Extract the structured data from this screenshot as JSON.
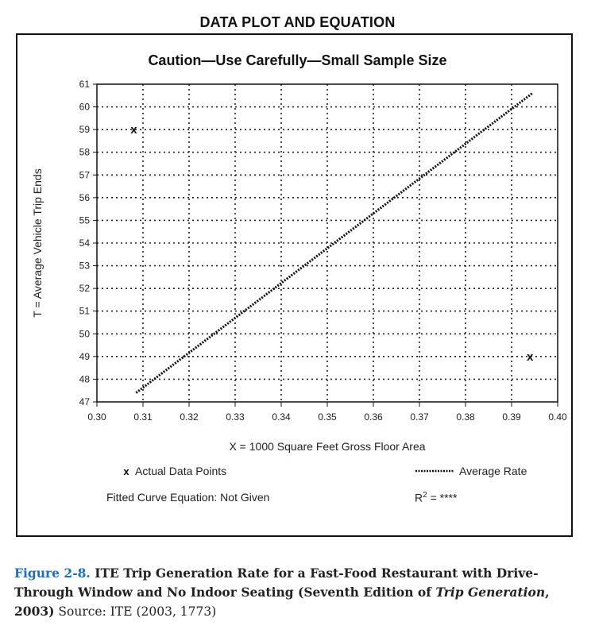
{
  "figure": {
    "heading": "DATA PLOT AND EQUATION",
    "caution": "Caution—Use Carefully—Small Sample Size"
  },
  "chart_data": {
    "type": "scatter",
    "xlabel": "X = 1000 Square Feet Gross Floor Area",
    "ylabel": "T = Average Vehicle Trip Ends",
    "xlim": [
      0.3,
      0.4
    ],
    "ylim": [
      47,
      61
    ],
    "x_ticks": [
      "0.30",
      "0.31",
      "0.32",
      "0.33",
      "0.34",
      "0.35",
      "0.36",
      "0.37",
      "0.38",
      "0.39",
      "0.40"
    ],
    "y_ticks": [
      "47",
      "48",
      "49",
      "50",
      "51",
      "52",
      "53",
      "54",
      "55",
      "56",
      "57",
      "58",
      "59",
      "60",
      "61"
    ],
    "grid": true,
    "points": [
      {
        "x": 0.308,
        "y": 59.0
      },
      {
        "x": 0.394,
        "y": 49.0
      }
    ],
    "average_rate_line": {
      "x": [
        0.3085,
        0.3945
      ],
      "y": [
        47.4,
        60.6
      ]
    },
    "legend": {
      "points_label": "Actual Data Points",
      "line_label": "Average Rate"
    },
    "equation_label": "Fitted Curve Equation: Not Given",
    "r2_label": "R",
    "r2_sup": "2",
    "r2_value": "= ****"
  },
  "caption": {
    "figure_number": "Figure 2-8.",
    "title_a": " ITE Trip Generation Rate for a Fast-Food Restaurant with Drive-Through Window and No Indoor Seating (Seventh Edition of ",
    "title_italic": "Trip Generation",
    "title_b": ", 2003)",
    "source": " Source: ITE (2003, 1773)"
  }
}
